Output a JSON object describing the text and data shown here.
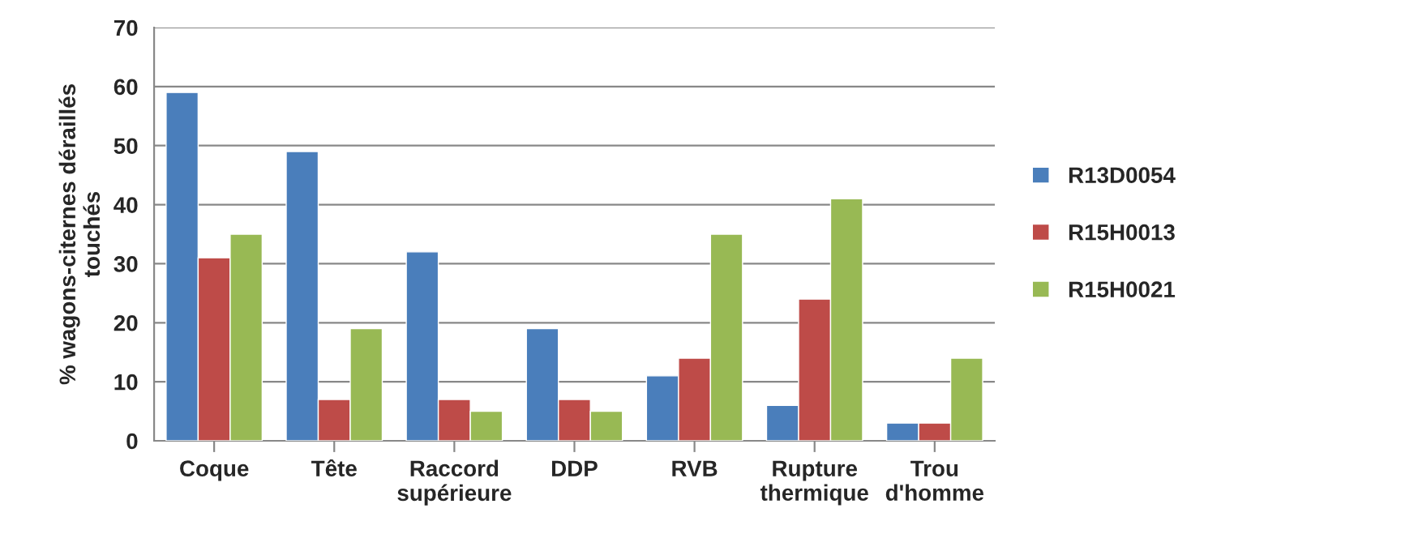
{
  "chart_data": {
    "type": "bar",
    "ylabel": "% wagons-citernes déraillés\ntouchés",
    "categories": [
      "Coque",
      "Tête",
      "Raccord\nsupérieure",
      "DDP",
      "RVB",
      "Rupture\nthermique",
      "Trou\nd'homme"
    ],
    "series": [
      {
        "name": "R13D0054",
        "color": "#4a7ebb",
        "values": [
          59,
          49,
          32,
          19,
          11,
          6,
          3
        ]
      },
      {
        "name": "R15H0013",
        "color": "#be4b48",
        "values": [
          31,
          7,
          7,
          7,
          14,
          24,
          3
        ]
      },
      {
        "name": "R15H0021",
        "color": "#98b954",
        "values": [
          35,
          19,
          5,
          5,
          35,
          41,
          14
        ]
      }
    ],
    "ylim": [
      0,
      70
    ],
    "yticks": [
      0,
      10,
      20,
      30,
      40,
      50,
      60,
      70
    ],
    "grid": "y",
    "legend": "right"
  }
}
